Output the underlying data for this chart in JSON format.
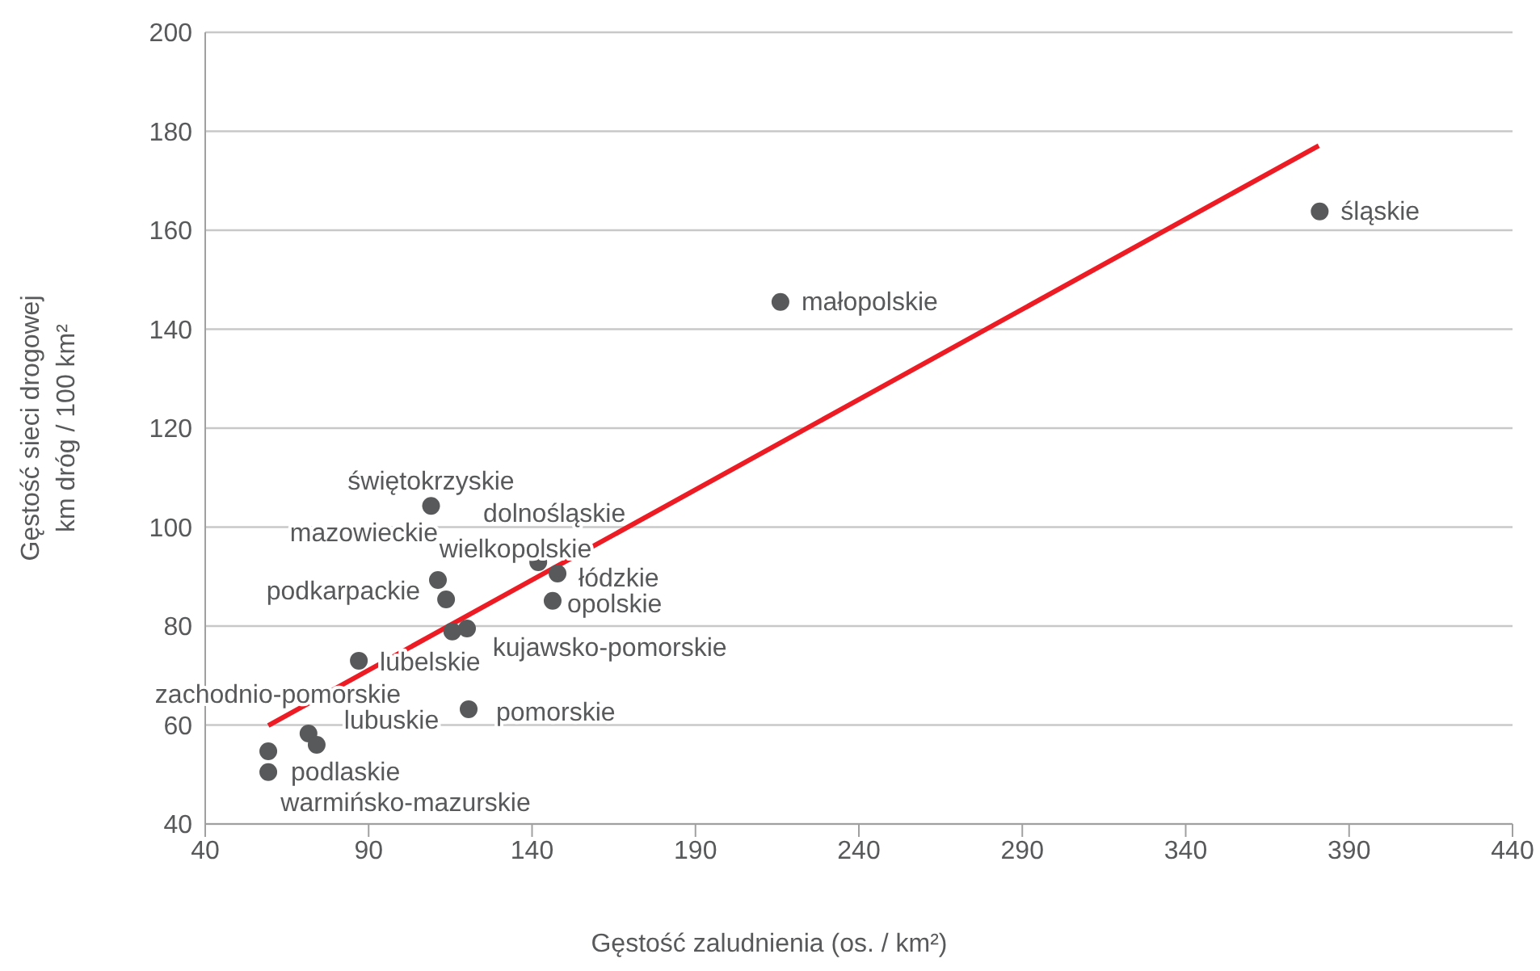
{
  "chart_data": {
    "type": "scatter",
    "xlabel": "Gęstość zaludnienia (os. / km²)",
    "ylabel": "Gęstość sieci drogowej\nkm dróg / 100 km²",
    "xlim": [
      40,
      440
    ],
    "xticks": [
      40,
      90,
      140,
      190,
      240,
      290,
      340,
      390,
      440
    ],
    "ylim": [
      40,
      200
    ],
    "yticks": [
      40,
      60,
      80,
      100,
      120,
      140,
      160,
      180,
      200
    ],
    "grid": "y",
    "series": [
      {
        "marker": "circle",
        "color": "#58595b",
        "x": [
          381,
          216,
          109.1,
          111.2,
          113.7,
          141.9,
          147.8,
          146.3,
          120.1,
          115.6,
          87.0,
          120.6,
          71.6,
          74.1,
          59.3,
          59.3
        ],
        "values": [
          163.8,
          145.5,
          104.3,
          89.3,
          85.4,
          92.9,
          90.6,
          85.1,
          79.5,
          78.9,
          73.0,
          63.2,
          58.3,
          56.0,
          54.7,
          50.5
        ]
      },
      {
        "type": "line",
        "color": "#ed1c24",
        "x": [
          59.3,
          380.7
        ],
        "values": [
          59.9,
          177.1
        ]
      }
    ],
    "annotations": [
      {
        "text": "śląskie",
        "x": 381,
        "y": 163.8
      },
      {
        "text": "małopolskie",
        "x": 216,
        "y": 145.5
      },
      {
        "text": "świętokrzyskie",
        "x": 109.1,
        "y": 104.3
      },
      {
        "text": "mazowieckie",
        "x": 111.2,
        "y": 89.3
      },
      {
        "text": "podkarpackie",
        "x": 113.7,
        "y": 85.4
      },
      {
        "text": "dolnośląskie",
        "x": 141.9,
        "y": 92.9
      },
      {
        "text": "łódzkie",
        "x": 147.8,
        "y": 90.6
      },
      {
        "text": "opolskie",
        "x": 146.3,
        "y": 85.1
      },
      {
        "text": "wielkopolskie",
        "x": 120.1,
        "y": 79.5
      },
      {
        "text": "kujawsko-pomorskie",
        "x": 115.6,
        "y": 78.9
      },
      {
        "text": "lubelskie",
        "x": 87.0,
        "y": 73.0
      },
      {
        "text": "pomorskie",
        "x": 120.6,
        "y": 63.2
      },
      {
        "text": "lubuskie",
        "x": 71.6,
        "y": 58.3
      },
      {
        "text": "zachodnio-pomorskie",
        "x": 74.1,
        "y": 56.0
      },
      {
        "text": "podlaskie",
        "x": 59.3,
        "y": 54.7
      },
      {
        "text": "warmińsko-mazurskie",
        "x": 59.3,
        "y": 50.5
      }
    ]
  }
}
